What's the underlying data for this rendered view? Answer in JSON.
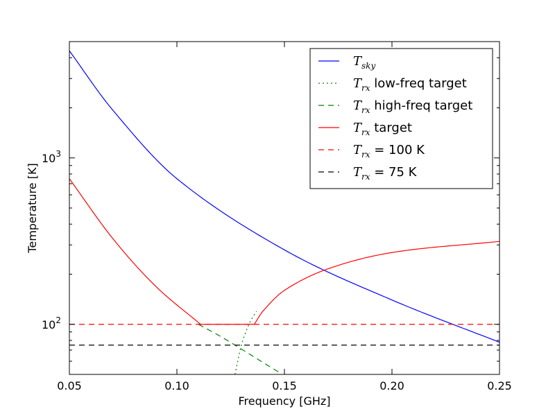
{
  "chart_data": {
    "type": "line",
    "title": "",
    "xlabel": "Frequency [GHz]",
    "ylabel": "Temperature [K]",
    "xlim": [
      0.05,
      0.25
    ],
    "ylim": [
      50,
      5000
    ],
    "yscale": "log",
    "grid": false,
    "legend_position": "top-right",
    "x_ticks": [
      "0.05",
      "0.10",
      "0.15",
      "0.20",
      "0.25"
    ],
    "y_ticks": [
      {
        "base": "10",
        "exp": "2"
      },
      {
        "base": "10",
        "exp": "3"
      }
    ],
    "series": [
      {
        "name": "T_sky",
        "legend_main": "T",
        "legend_sub": "sky",
        "legend_rest": "",
        "color": "#0000ff",
        "style": "solid",
        "x": [
          0.05,
          0.07,
          0.1,
          0.15,
          0.2,
          0.25
        ],
        "y": [
          4400,
          1950,
          750,
          280,
          140,
          78
        ]
      },
      {
        "name": "T_rx low-freq target",
        "legend_main": "T",
        "legend_sub": "rx",
        "legend_rest": " low-freq target",
        "color": "#008000",
        "style": "dotted",
        "x": [
          0.127,
          0.13,
          0.1335,
          0.137
        ],
        "y": [
          50,
          75,
          100,
          120
        ]
      },
      {
        "name": "T_rx high-freq target",
        "legend_main": "T",
        "legend_sub": "rx",
        "legend_rest": " high-freq target",
        "color": "#008000",
        "style": "dashed",
        "x": [
          0.11,
          0.12,
          0.13,
          0.14,
          0.148
        ],
        "y": [
          100,
          85,
          71,
          59,
          51
        ]
      },
      {
        "name": "T_rx target",
        "legend_main": "T",
        "legend_sub": "rx",
        "legend_rest": " target",
        "color": "#ff0000",
        "style": "solid",
        "x": [
          0.05,
          0.07,
          0.09,
          0.111,
          0.136,
          0.14,
          0.15,
          0.17,
          0.2,
          0.25
        ],
        "y": [
          750,
          330,
          170,
          100,
          100,
          120,
          160,
          215,
          270,
          315
        ]
      },
      {
        "name": "T_rx = 100 K",
        "legend_main": "T",
        "legend_sub": "rx",
        "legend_rest": " = 100 K",
        "color": "#ff0000",
        "style": "dashed",
        "x": [
          0.05,
          0.25
        ],
        "y": [
          100,
          100
        ]
      },
      {
        "name": "T_rx = 75 K",
        "legend_main": "T",
        "legend_sub": "rx",
        "legend_rest": " = 75 K",
        "color": "#000000",
        "style": "dashed",
        "x": [
          0.05,
          0.25
        ],
        "y": [
          75,
          75
        ]
      }
    ]
  }
}
